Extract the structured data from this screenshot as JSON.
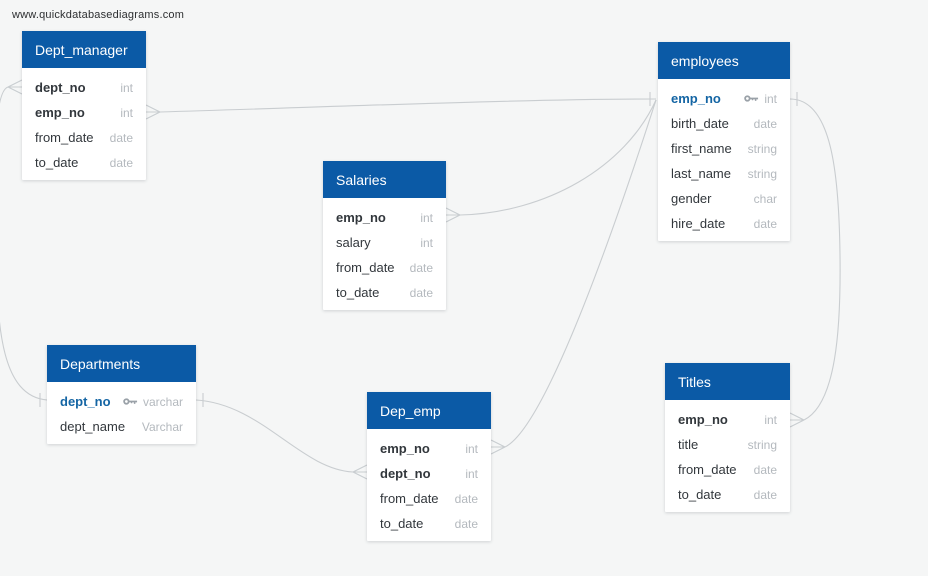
{
  "watermark": "www.quickdatabasediagrams.com",
  "colors": {
    "header_bg": "#0b5aa6",
    "header_text": "#ffffff",
    "pk_text": "#1465a4",
    "field_text": "#32373c",
    "type_text": "#b4b9be",
    "connector": "#c9cdd0",
    "canvas_bg": "#f5f6f6",
    "table_bg": "#ffffff"
  },
  "tables": [
    {
      "name": "Dept_manager",
      "fields": [
        {
          "name": "dept_no",
          "type": "int",
          "bold": true
        },
        {
          "name": "emp_no",
          "type": "int",
          "bold": true
        },
        {
          "name": "from_date",
          "type": "date"
        },
        {
          "name": "to_date",
          "type": "date"
        }
      ]
    },
    {
      "name": "employees",
      "fields": [
        {
          "name": "emp_no",
          "type": "int",
          "pk": true,
          "bold": true
        },
        {
          "name": "birth_date",
          "type": "date"
        },
        {
          "name": "first_name",
          "type": "string"
        },
        {
          "name": "last_name",
          "type": "string"
        },
        {
          "name": "gender",
          "type": "char"
        },
        {
          "name": "hire_date",
          "type": "date"
        }
      ]
    },
    {
      "name": "Salaries",
      "fields": [
        {
          "name": "emp_no",
          "type": "int",
          "bold": true
        },
        {
          "name": "salary",
          "type": "int"
        },
        {
          "name": "from_date",
          "type": "date"
        },
        {
          "name": "to_date",
          "type": "date"
        }
      ]
    },
    {
      "name": "Departments",
      "fields": [
        {
          "name": "dept_no",
          "type": "varchar",
          "pk": true,
          "bold": true
        },
        {
          "name": "dept_name",
          "type": "Varchar"
        }
      ]
    },
    {
      "name": "Dep_emp",
      "fields": [
        {
          "name": "emp_no",
          "type": "int",
          "bold": true
        },
        {
          "name": "dept_no",
          "type": "int",
          "bold": true
        },
        {
          "name": "from_date",
          "type": "date"
        },
        {
          "name": "to_date",
          "type": "date"
        }
      ]
    },
    {
      "name": "Titles",
      "fields": [
        {
          "name": "emp_no",
          "type": "int",
          "bold": true
        },
        {
          "name": "title",
          "type": "string"
        },
        {
          "name": "from_date",
          "type": "date"
        },
        {
          "name": "to_date",
          "type": "date"
        }
      ]
    }
  ],
  "relationships": [
    {
      "from": "Dept_manager.emp_no",
      "to": "employees.emp_no",
      "from_end": "many",
      "to_end": "one"
    },
    {
      "from": "Dept_manager.dept_no",
      "to": "Departments.dept_no",
      "from_end": "many",
      "to_end": "one"
    },
    {
      "from": "Salaries.emp_no",
      "to": "employees.emp_no",
      "from_end": "many",
      "to_end": "one"
    },
    {
      "from": "Dep_emp.emp_no",
      "to": "employees.emp_no",
      "from_end": "many",
      "to_end": "one"
    },
    {
      "from": "Dep_emp.dept_no",
      "to": "Departments.dept_no",
      "from_end": "many",
      "to_end": "one"
    },
    {
      "from": "Titles.emp_no",
      "to": "employees.emp_no",
      "from_end": "many",
      "to_end": "one"
    }
  ]
}
